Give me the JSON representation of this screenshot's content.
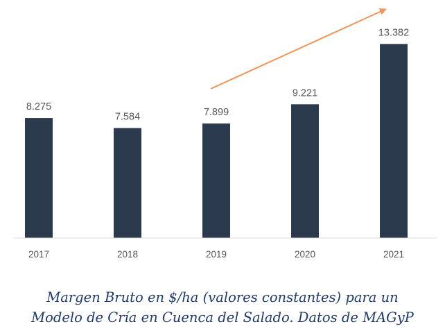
{
  "chart_data": {
    "type": "bar",
    "categories": [
      "2017",
      "2018",
      "2019",
      "2020",
      "2021"
    ],
    "values": [
      8275,
      7584,
      7899,
      9221,
      13382
    ],
    "data_labels": [
      "8.275",
      "7.584",
      "7.899",
      "9.221",
      "13.382"
    ],
    "ylim": [
      0,
      14500
    ],
    "grid": false,
    "legend": "none",
    "trend_arrow": {
      "from_category": "2019",
      "to_category": "2021",
      "color": "#f0955a"
    },
    "colors": {
      "bar": "#2b3a4d",
      "text": "#555555",
      "axis": "#d9d9d9",
      "caption": "#1f3b70"
    }
  },
  "caption": {
    "line1": "Margen Bruto en $/ha (valores constantes) para un",
    "line2": "Modelo de Cría en Cuenca del Salado. Datos de MAGyP"
  }
}
